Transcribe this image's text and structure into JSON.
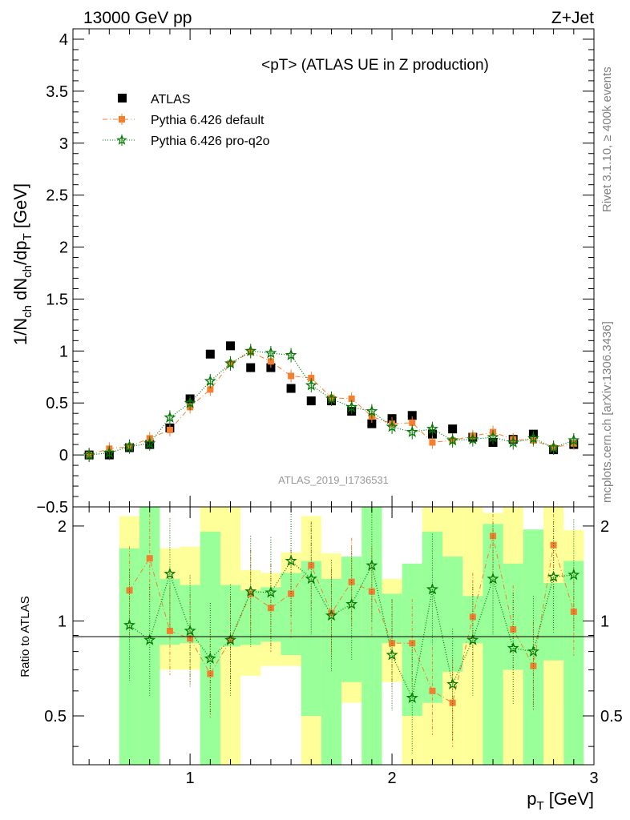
{
  "header": {
    "left": "13000 GeV pp",
    "right": "Z+Jet"
  },
  "side_labels": {
    "rivet": "Rivet 3.1.10, ≥ 400k events",
    "mcplots": "mcplots.cern.ch [arXiv:1306.3436]"
  },
  "colors": {
    "atlas": "#000000",
    "default": "#f47f30",
    "proq2o": "#007800",
    "band_yellow": "#ffff99",
    "band_green": "#99ff99"
  },
  "chart_data": [
    {
      "type": "scatter",
      "title": "<pT> (ATLAS UE in Z production)",
      "watermark": "ATLAS_2019_I1736531",
      "ylabel": "1/N_ch dN_ch/dp_T [GeV]",
      "xlim": [
        0.42,
        3.0
      ],
      "ylim": [
        -0.5,
        4.1
      ],
      "yticks": [
        "−0.5",
        "0",
        "0.5",
        "1",
        "1.5",
        "2",
        "2.5",
        "3",
        "3.5",
        "4"
      ],
      "ytick_values": [
        -0.5,
        0,
        0.5,
        1,
        1.5,
        2,
        2.5,
        3,
        3.5,
        4
      ],
      "legend_position": "top-left",
      "x": [
        0.5,
        0.6,
        0.7,
        0.8,
        0.9,
        1.0,
        1.1,
        1.2,
        1.3,
        1.4,
        1.5,
        1.6,
        1.7,
        1.8,
        1.9,
        2.0,
        2.1,
        2.2,
        2.3,
        2.4,
        2.5,
        2.6,
        2.7,
        2.8,
        2.9
      ],
      "series": [
        {
          "name": "ATLAS",
          "marker": "square",
          "values": [
            0.0,
            0.0,
            0.07,
            0.1,
            0.26,
            0.54,
            0.97,
            1.05,
            0.84,
            0.84,
            0.64,
            0.52,
            0.52,
            0.42,
            0.3,
            0.35,
            0.38,
            0.2,
            0.25,
            0.17,
            0.12,
            0.15,
            0.2,
            0.05,
            0.1
          ]
        },
        {
          "name": "Pythia 6.426 default",
          "marker": "filled-square-small",
          "line": "dash-dot",
          "values": [
            0.0,
            0.06,
            0.08,
            0.16,
            0.24,
            0.46,
            0.63,
            0.88,
            0.99,
            0.9,
            0.76,
            0.74,
            0.55,
            0.54,
            0.37,
            0.3,
            0.31,
            0.12,
            0.14,
            0.18,
            0.22,
            0.15,
            0.14,
            0.07,
            0.11
          ]
        },
        {
          "name": "Pythia 6.426 pro-q2o",
          "marker": "star",
          "line": "dotted",
          "values": [
            0.0,
            0.02,
            0.08,
            0.11,
            0.36,
            0.5,
            0.71,
            0.88,
            1.0,
            0.98,
            0.96,
            0.67,
            0.54,
            0.46,
            0.42,
            0.27,
            0.22,
            0.25,
            0.14,
            0.15,
            0.17,
            0.12,
            0.16,
            0.07,
            0.14
          ]
        }
      ]
    },
    {
      "type": "scatter",
      "ylabel": "Ratio to ATLAS",
      "xlabel": "p_T [GeV]",
      "xlim": [
        0.42,
        3.0
      ],
      "ylim": [
        0.35,
        2.3
      ],
      "xticks": [
        "1",
        "2",
        "3"
      ],
      "xtick_values": [
        1,
        2,
        3
      ],
      "yticks": [
        "0.5",
        "1",
        "2"
      ],
      "ytick_values": [
        0.5,
        1,
        2
      ],
      "y_scale": "log",
      "x": [
        0.7,
        0.8,
        0.9,
        1.0,
        1.1,
        1.2,
        1.3,
        1.4,
        1.5,
        1.6,
        1.7,
        1.8,
        1.9,
        2.0,
        2.1,
        2.2,
        2.3,
        2.4,
        2.5,
        2.6,
        2.7,
        2.8,
        2.9
      ],
      "series": [
        {
          "name": "Pythia 6.426 default",
          "values": [
            1.25,
            1.58,
            0.93,
            0.88,
            0.68,
            0.87,
            1.22,
            1.1,
            1.22,
            1.5,
            1.06,
            1.33,
            1.24,
            0.85,
            0.85,
            0.6,
            0.55,
            1.03,
            1.86,
            0.94,
            0.72,
            1.74,
            1.07
          ]
        },
        {
          "name": "Pythia 6.426 pro-q2o",
          "values": [
            0.97,
            0.87,
            1.41,
            0.93,
            0.76,
            0.87,
            1.24,
            1.23,
            1.55,
            1.36,
            1.04,
            1.13,
            1.5,
            0.78,
            0.57,
            1.26,
            0.63,
            0.87,
            1.36,
            0.82,
            0.8,
            1.38,
            1.4
          ]
        }
      ],
      "bands": {
        "x_edges": [
          0.65,
          0.75,
          0.85,
          0.95,
          1.05,
          1.15,
          1.25,
          1.35,
          1.45,
          1.55,
          1.65,
          1.75,
          1.85,
          1.95,
          2.05,
          2.15,
          2.25,
          2.35,
          2.45,
          2.55,
          2.65,
          2.75,
          2.85,
          2.95
        ],
        "yellow": [
          [
            0.3,
            2.15
          ],
          [
            0.3,
            2.6
          ],
          [
            0.7,
            1.7
          ],
          [
            0.7,
            1.72
          ],
          [
            0.5,
            2.6
          ],
          [
            0.3,
            2.6
          ],
          [
            0.67,
            1.45
          ],
          [
            0.72,
            1.42
          ],
          [
            0.72,
            1.65
          ],
          [
            0.3,
            2.15
          ],
          [
            0.3,
            1.64
          ],
          [
            0.55,
            1.55
          ],
          [
            0.3,
            2.6
          ],
          [
            0.64,
            1.36
          ],
          [
            0.3,
            1.5
          ],
          [
            0.3,
            2.6
          ],
          [
            0.3,
            2.35
          ],
          [
            0.3,
            2.6
          ],
          [
            0.3,
            2.2
          ],
          [
            0.3,
            2.6
          ],
          [
            0.68,
            1.62
          ],
          [
            0.3,
            2.3
          ],
          [
            0.54,
            1.94
          ]
        ],
        "green": [
          [
            0.3,
            1.7
          ],
          [
            0.3,
            2.6
          ],
          [
            0.84,
            1.36
          ],
          [
            0.85,
            1.3
          ],
          [
            0.3,
            1.92
          ],
          [
            0.83,
            1.3
          ],
          [
            0.84,
            1.25
          ],
          [
            0.86,
            1.28
          ],
          [
            0.78,
            1.42
          ],
          [
            0.5,
            1.55
          ],
          [
            0.3,
            1.36
          ],
          [
            0.64,
            1.6
          ],
          [
            0.3,
            2.6
          ],
          [
            0.85,
            1.22
          ],
          [
            0.5,
            1.52
          ],
          [
            0.55,
            1.92
          ],
          [
            0.69,
            1.6
          ],
          [
            0.85,
            1.2
          ],
          [
            0.35,
            2.03
          ],
          [
            0.7,
            1.52
          ],
          [
            0.3,
            1.95
          ],
          [
            0.75,
            1.32
          ],
          [
            0.3,
            1.55
          ]
        ]
      }
    }
  ]
}
